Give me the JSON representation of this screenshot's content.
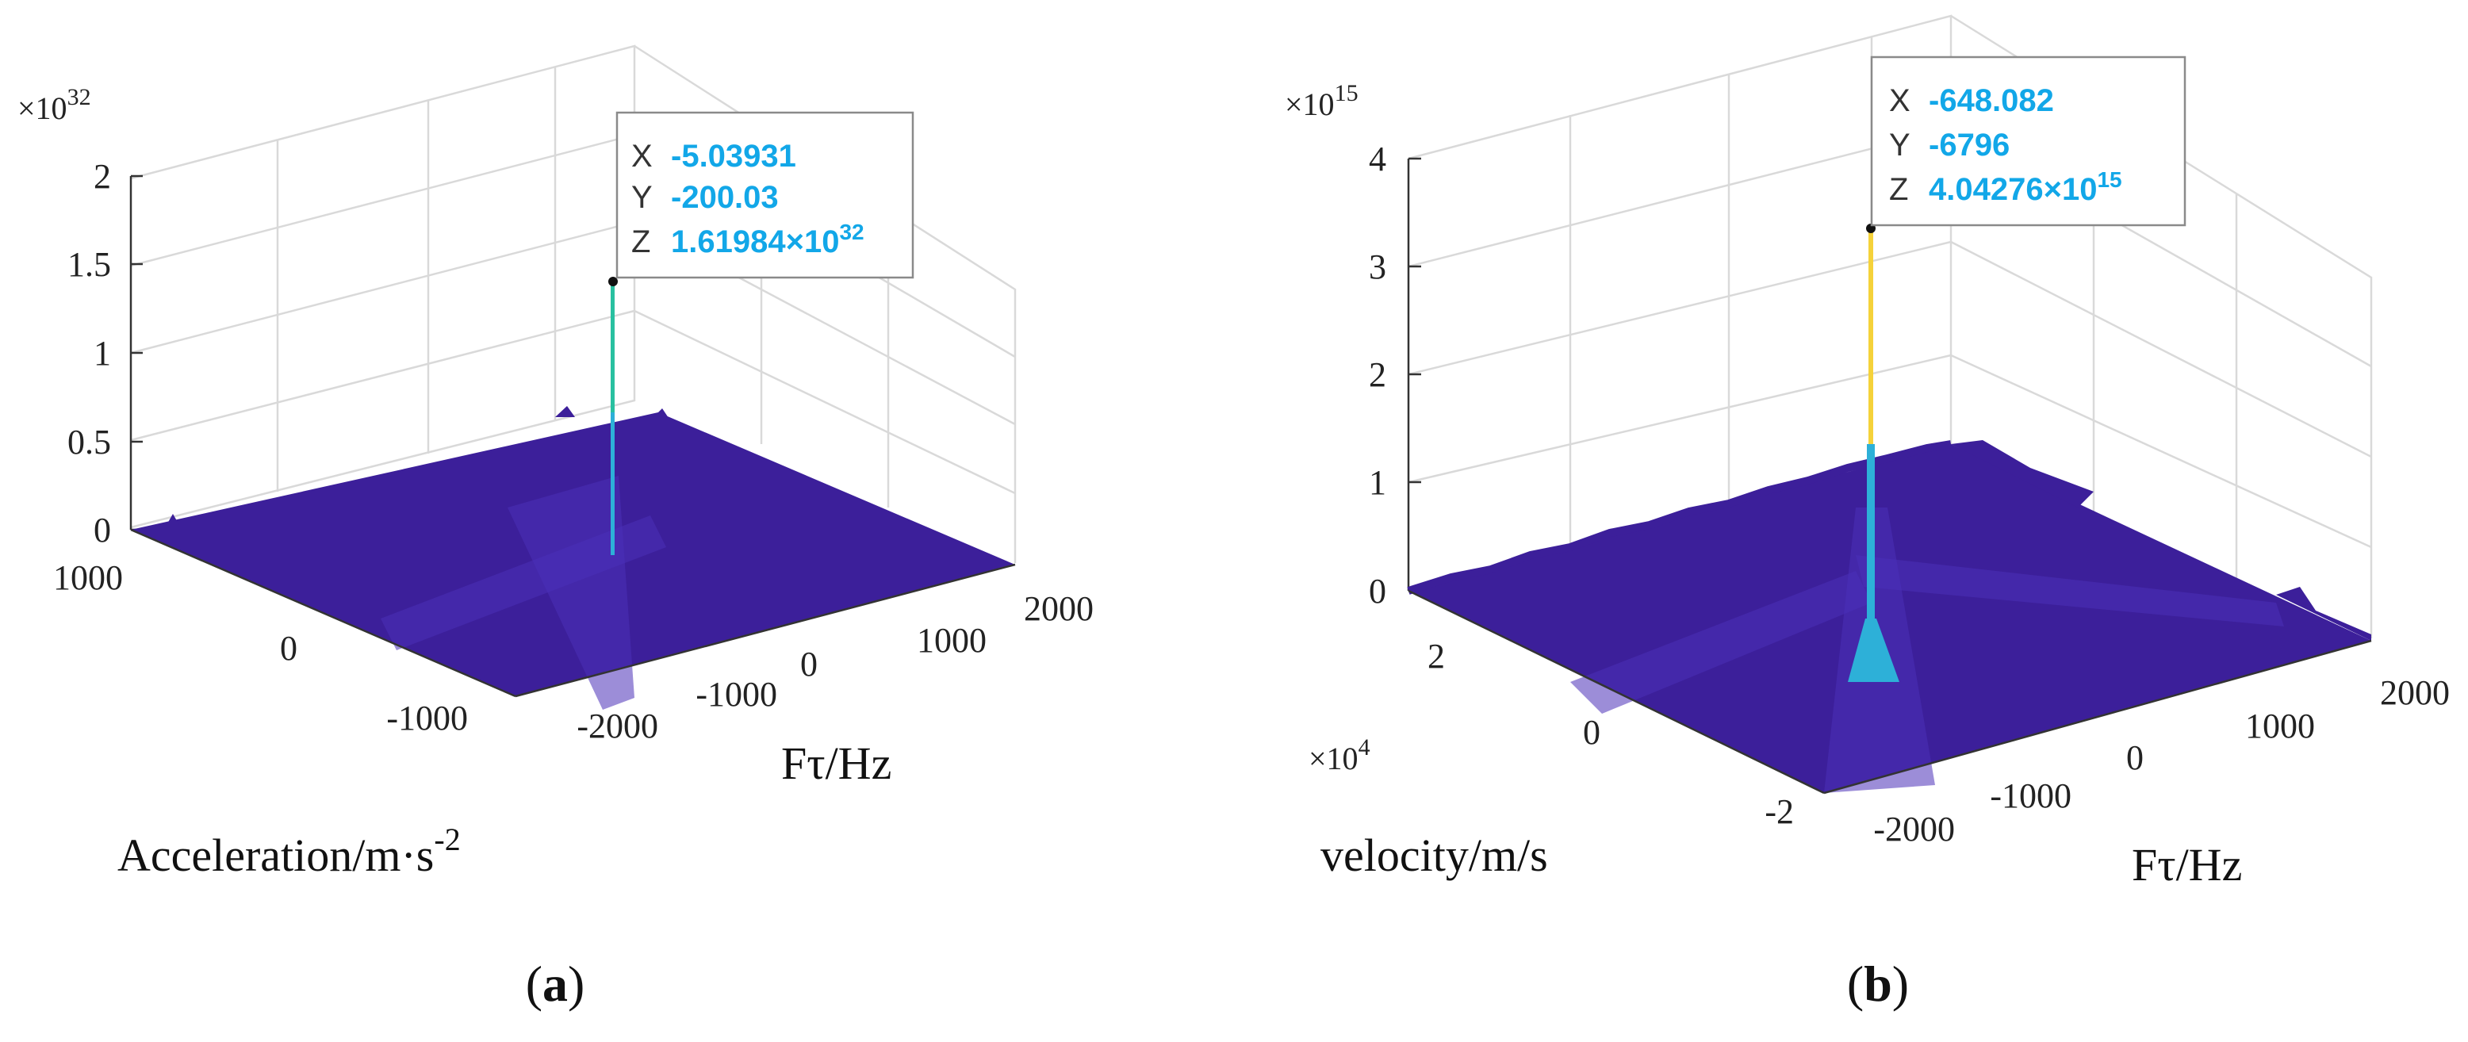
{
  "chart_data": [
    {
      "type": "surface3d",
      "panel_label": "a",
      "zlabel_multiplier_base": "×10",
      "zlabel_multiplier_exp": "32",
      "z_ticks": [
        "0",
        "0.5",
        "1",
        "1.5",
        "2"
      ],
      "zlim": [
        0,
        2
      ],
      "y_ticks": [
        "1000",
        "0",
        "-1000"
      ],
      "x_ticks": [
        "-2000",
        "-1000",
        "0",
        "1000",
        "2000"
      ],
      "xlabel": "Fτ/Hz",
      "ylabel_main": "Acceleration/m·s",
      "ylabel_sup": "-2",
      "peak": {
        "x": -5.03931,
        "y": -200.03,
        "z_mantissa": 1.61984,
        "z_exp": 32
      },
      "datatip": {
        "x_key": "X",
        "x_val": "-5.03931",
        "y_key": "Y",
        "y_val": "-200.03",
        "z_key": "Z",
        "z_val": "1.61984×10",
        "z_sup": "32"
      },
      "colors": {
        "surface": "#3c1f9a",
        "peak_low": "#2db0d8",
        "peak_high": "#29c0a0"
      }
    },
    {
      "type": "surface3d",
      "panel_label": "b",
      "zlabel_multiplier_base": "×10",
      "zlabel_multiplier_exp": "15",
      "z_ticks": [
        "0",
        "1",
        "2",
        "3",
        "4"
      ],
      "zlim": [
        0,
        4
      ],
      "y_ticks": [
        "2",
        "0",
        "-2"
      ],
      "y_multiplier_base": "×10",
      "y_multiplier_exp": "4",
      "x_ticks": [
        "-2000",
        "-1000",
        "0",
        "1000",
        "2000"
      ],
      "xlabel": "Fτ/Hz",
      "ylabel_main": "velocity/m/s",
      "peak": {
        "x": -648.082,
        "y": -6796,
        "z_mantissa": 4.04276,
        "z_exp": 15
      },
      "datatip": {
        "x_key": "X",
        "x_val": "-648.082",
        "y_key": "Y",
        "y_val": "-6796",
        "z_key": "Z",
        "z_val": "4.04276×10",
        "z_sup": "15"
      },
      "colors": {
        "surface": "#3c1f9a",
        "peak_low": "#2db0d8",
        "peak_high": "#f5d23a"
      }
    }
  ]
}
